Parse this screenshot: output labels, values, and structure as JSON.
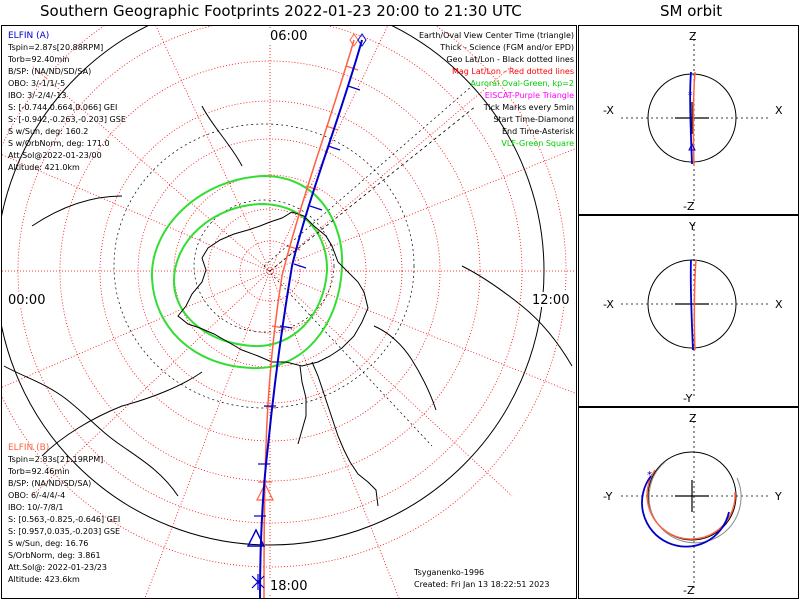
{
  "header": {
    "title": "Southern Geographic Footprints 2022-01-23 20:00 to 21:30 UTC",
    "sm_title": "SM orbit"
  },
  "map": {
    "time_labels": {
      "top": "06:00",
      "left": "00:00",
      "right": "12:00",
      "bottom": "18:00"
    },
    "legend": [
      {
        "text": "Earth/Oval View Center Time (triangle)",
        "color": "#000000"
      },
      {
        "text": "Thick - Science (FGM and/or EPD)",
        "color": "#000000"
      },
      {
        "text": "Geo Lat/Lon - Black dotted lines",
        "color": "#000000"
      },
      {
        "text": "Mag Lat/Lon - Red dotted lines",
        "color": "#ff0000"
      },
      {
        "text": "Auroral Oval-Green, kp=2",
        "color": "#00cc00"
      },
      {
        "text": "EISCAT-Purple Triangle",
        "color": "#ff00ff"
      },
      {
        "text": "Tick Marks every 5min",
        "color": "#000000"
      },
      {
        "text": "Start Time-Diamond",
        "color": "#000000"
      },
      {
        "text": "End Time-Asterisk",
        "color": "#000000"
      },
      {
        "text": "VLF-Green Square",
        "color": "#00cc00"
      }
    ],
    "elfin_a": {
      "name": "ELFIN (A)",
      "color": "#0000cc",
      "lines": [
        "Tspin=2.87s[20.88RPM]",
        "Torb=92.40min",
        "B/SP: (NA/ND/SD/SA)",
        "OBO: 3/-1/1/-5",
        "IBO: 3/-2/4/-13",
        "S: [-0.744,0.664,0.066] GEI",
        "S: [-0.942,-0.263,-0.203] GSE",
        "S w/Sun, deg: 160.2",
        "S w/OrbNorm, deg: 171.0",
        "Att.Sol@2022-01-23/00",
        "Altitude: 421.0km"
      ]
    },
    "elfin_b": {
      "name": "ELFIN (B)",
      "color": "#ff6040",
      "lines": [
        "Tspin=2.83s[21.19RPM]",
        "Torb=92.46min",
        "B/SP: (NA/ND/SD/SA)",
        "OBO: 6/-4/4/-4",
        "IBO: 10/-7/8/1",
        "S: [0.563,-0.825,-0.646] GEI",
        "S: [0.957,0.035,-0.203] GSE",
        "S w/Sun, deg: 16.76",
        "S/OrbNorm, deg: 3.861",
        "Att.Sol@: 2022-01-23/23",
        "Altitude: 423.6km"
      ]
    },
    "credit": {
      "author": "Tsyganenko-1996",
      "created": "Created: Fri Jan 13 18:22:51 2023"
    }
  },
  "sm_panels": [
    {
      "top": "Z",
      "bottom": "-Z",
      "left": "-X",
      "right": "X"
    },
    {
      "top": "Y",
      "bottom": "-Y",
      "left": "-X",
      "right": "X"
    },
    {
      "top": "Z",
      "bottom": "-Z",
      "left": "-Y",
      "right": "Y"
    }
  ],
  "colors": {
    "elfin_a": "#0000cc",
    "elfin_b": "#ff6040",
    "mag_grid": "#ff0000",
    "oval": "#33dd33",
    "geo_grid": "#000000"
  }
}
